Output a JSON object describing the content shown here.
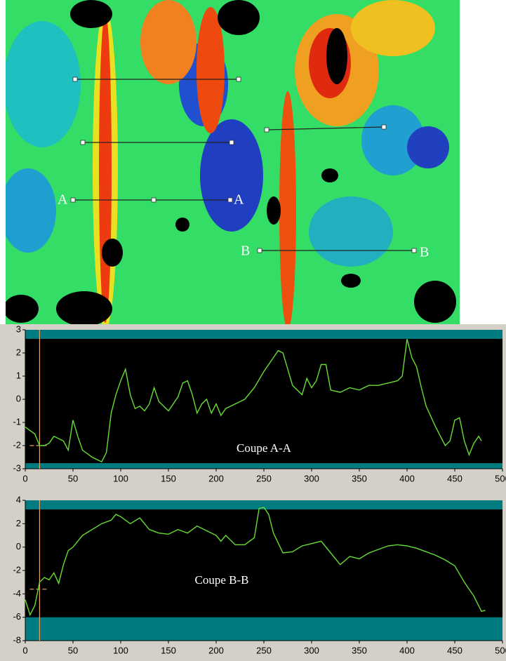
{
  "map": {
    "labels": [
      "A",
      "A",
      "B",
      "B"
    ]
  },
  "chart_data": [
    {
      "type": "line",
      "title": "Coupe A-A",
      "x": [
        0,
        10,
        15,
        20,
        25,
        30,
        40,
        45,
        50,
        55,
        60,
        70,
        80,
        85,
        90,
        95,
        100,
        105,
        110,
        115,
        120,
        125,
        130,
        135,
        140,
        150,
        160,
        165,
        170,
        175,
        180,
        185,
        190,
        195,
        200,
        205,
        210,
        220,
        230,
        240,
        250,
        260,
        265,
        270,
        275,
        280,
        290,
        295,
        300,
        305,
        310,
        315,
        320,
        330,
        340,
        350,
        360,
        370,
        380,
        390,
        395,
        400,
        405,
        410,
        415,
        420,
        430,
        440,
        445,
        450,
        455,
        460,
        465,
        470,
        475,
        478
      ],
      "series": [
        {
          "color": "#66dd33",
          "values": [
            -1.2,
            -1.5,
            -2,
            -2,
            -1.9,
            -1.6,
            -1.8,
            -2.2,
            -0.9,
            -1.6,
            -2.2,
            -2.5,
            -2.7,
            -2.3,
            -0.6,
            0.2,
            0.8,
            1.3,
            0.2,
            -0.4,
            -0.3,
            -0.5,
            -0.2,
            0.5,
            -0.1,
            -0.5,
            0.1,
            0.7,
            0.8,
            0.2,
            -0.6,
            -0.2,
            0,
            -0.6,
            -0.2,
            -0.7,
            -0.4,
            -0.2,
            0,
            0.5,
            1.2,
            1.8,
            2.1,
            2.0,
            1.3,
            0.6,
            0.2,
            0.9,
            0.5,
            0.8,
            1.5,
            1.5,
            0.4,
            0.3,
            0.5,
            0.4,
            0.6,
            0.6,
            0.7,
            0.8,
            1.0,
            2.6,
            1.8,
            1.4,
            0.5,
            -0.3,
            -1.2,
            -2.0,
            -1.8,
            -0.9,
            -0.8,
            -1.8,
            -2.4,
            -1.9,
            -1.6,
            -1.8
          ]
        }
      ],
      "xlim": [
        0,
        500
      ],
      "xticks": [
        0,
        50,
        100,
        150,
        200,
        250,
        300,
        350,
        400,
        450,
        500
      ],
      "ylim": [
        -3,
        3
      ],
      "yticks": [
        -3,
        -2,
        -1,
        0,
        1,
        2,
        3
      ],
      "cursor_x": 15,
      "cursor_y": -2
    },
    {
      "type": "line",
      "title": "Coupe B-B",
      "x": [
        0,
        5,
        10,
        15,
        20,
        25,
        30,
        35,
        40,
        45,
        50,
        60,
        70,
        80,
        90,
        95,
        100,
        110,
        120,
        130,
        140,
        150,
        160,
        170,
        180,
        190,
        200,
        205,
        210,
        220,
        230,
        240,
        245,
        250,
        255,
        260,
        270,
        280,
        290,
        300,
        310,
        320,
        330,
        340,
        350,
        360,
        370,
        380,
        390,
        400,
        410,
        420,
        430,
        440,
        450,
        460,
        470,
        478,
        482
      ],
      "series": [
        {
          "color": "#66dd33",
          "values": [
            -4.5,
            -5.8,
            -5,
            -3,
            -2.6,
            -2.8,
            -2.2,
            -3.1,
            -1.5,
            -0.3,
            0,
            1.0,
            1.5,
            2.0,
            2.3,
            2.8,
            2.6,
            2.0,
            2.5,
            1.5,
            1.2,
            1.1,
            1.5,
            1.2,
            1.8,
            1.4,
            1.0,
            0.5,
            1.0,
            0.2,
            0.2,
            0.8,
            3.3,
            3.4,
            2.8,
            1.2,
            -0.5,
            -0.4,
            0.1,
            0.3,
            0.5,
            -0.5,
            -1.5,
            -0.8,
            -1.0,
            -0.5,
            -0.2,
            0.1,
            0.2,
            0.1,
            -0.1,
            -0.4,
            -0.7,
            -1.1,
            -1.6,
            -3.0,
            -4.2,
            -5.5,
            -5.4
          ]
        }
      ],
      "xlim": [
        0,
        500
      ],
      "xticks": [
        0,
        50,
        100,
        150,
        200,
        250,
        300,
        350,
        400,
        450,
        500
      ],
      "ylim": [
        -8,
        4
      ],
      "yticks": [
        -8,
        -6,
        -4,
        -2,
        0,
        2,
        4
      ],
      "cursor_x": 15,
      "cursor_y": -3.6
    }
  ]
}
